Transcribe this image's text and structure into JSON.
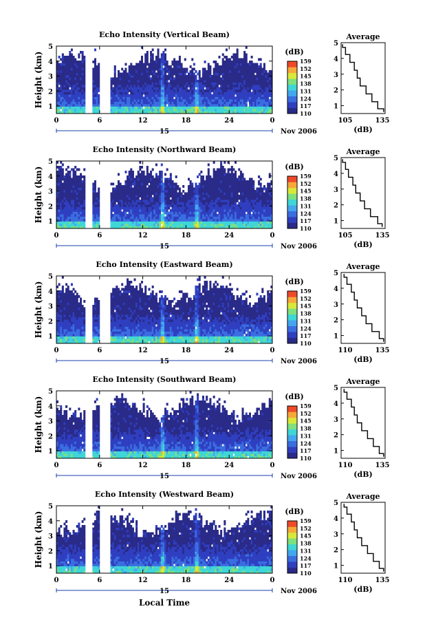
{
  "chart_data": [
    {
      "type": "heatmap",
      "title": "Echo Intensity (Vertical Beam)",
      "ylabel": "Height (km)",
      "ylim": [
        0.5,
        5.0
      ],
      "yticks": [
        "1",
        "2",
        "3",
        "4",
        "5"
      ],
      "xticks": [
        "0",
        "6",
        "12",
        "18",
        "24",
        "0"
      ],
      "xlim": [
        0,
        24
      ],
      "date_label": "15",
      "month_label": "Nov 2006",
      "colorbar": {
        "unit": "(dB)",
        "ticks": [
          "159",
          "152",
          "145",
          "138",
          "131",
          "124",
          "117",
          "110"
        ],
        "range": [
          110,
          159
        ]
      },
      "data_gaps_hours": [
        [
          3.3,
          4.0
        ],
        [
          4.9,
          5.9
        ]
      ],
      "bright_columns_hours": [
        11.8,
        15.6
      ],
      "profile": {
        "title": "Average",
        "xlabel": "(dB)",
        "xticks": [
          "105",
          "135"
        ],
        "xlim": [
          105,
          135
        ],
        "yticks": [
          "1",
          "2",
          "3",
          "4",
          "5"
        ],
        "height": [
          0.6,
          1.0,
          1.5,
          2.0,
          2.5,
          3.0,
          3.5,
          4.0,
          4.5,
          4.9
        ],
        "value": [
          134,
          130,
          126,
          122,
          118,
          116,
          114,
          111,
          108,
          106
        ]
      }
    },
    {
      "type": "heatmap",
      "title": "Echo Intensity (Northward Beam)",
      "ylabel": "Height (km)",
      "ylim": [
        0.5,
        5.0
      ],
      "yticks": [
        "1",
        "2",
        "3",
        "4",
        "5"
      ],
      "xticks": [
        "0",
        "6",
        "12",
        "18",
        "24",
        "0"
      ],
      "xlim": [
        0,
        24
      ],
      "date_label": "15",
      "month_label": "Nov 2006",
      "colorbar": {
        "unit": "(dB)",
        "ticks": [
          "159",
          "152",
          "145",
          "138",
          "131",
          "124",
          "117",
          "110"
        ],
        "range": [
          110,
          159
        ]
      },
      "data_gaps_hours": [
        [
          3.3,
          4.0
        ],
        [
          4.9,
          5.9
        ]
      ],
      "bright_columns_hours": [
        11.8,
        15.6
      ],
      "profile": {
        "title": "Average",
        "xlabel": "(dB)",
        "xticks": [
          "105",
          "135"
        ],
        "xlim": [
          105,
          135
        ],
        "yticks": [
          "1",
          "2",
          "3",
          "4",
          "5"
        ],
        "height": [
          0.6,
          1.0,
          1.5,
          2.0,
          2.5,
          3.0,
          3.5,
          4.0,
          4.5,
          4.9
        ],
        "value": [
          133,
          130,
          125,
          121,
          118,
          115,
          113,
          110,
          108,
          106
        ]
      }
    },
    {
      "type": "heatmap",
      "title": "Echo Intensity (Eastward Beam)",
      "ylabel": "Height (km)",
      "ylim": [
        0.5,
        5.0
      ],
      "yticks": [
        "1",
        "2",
        "3",
        "4",
        "5"
      ],
      "xticks": [
        "0",
        "6",
        "12",
        "18",
        "24",
        "0"
      ],
      "xlim": [
        0,
        24
      ],
      "date_label": "15",
      "month_label": "Nov 2006",
      "colorbar": {
        "unit": "(dB)",
        "ticks": [
          "159",
          "152",
          "145",
          "138",
          "131",
          "124",
          "117",
          "110"
        ],
        "range": [
          110,
          159
        ]
      },
      "data_gaps_hours": [
        [
          3.3,
          4.0
        ],
        [
          4.9,
          5.9
        ]
      ],
      "bright_columns_hours": [
        11.8,
        15.6
      ],
      "profile": {
        "title": "Average",
        "xlabel": "(dB)",
        "xticks": [
          "110",
          "135"
        ],
        "xlim": [
          105,
          135
        ],
        "yticks": [
          "1",
          "2",
          "3",
          "4",
          "5"
        ],
        "height": [
          0.6,
          1.0,
          1.5,
          2.0,
          2.5,
          3.0,
          3.5,
          4.0,
          4.5,
          4.9
        ],
        "value": [
          134,
          131,
          126,
          122,
          119,
          116,
          114,
          112,
          109,
          107
        ]
      }
    },
    {
      "type": "heatmap",
      "title": "Echo Intensity (Southward Beam)",
      "ylabel": "Height (km)",
      "ylim": [
        0.5,
        5.0
      ],
      "yticks": [
        "1",
        "2",
        "3",
        "4",
        "5"
      ],
      "xticks": [
        "0",
        "6",
        "12",
        "18",
        "24",
        "0"
      ],
      "xlim": [
        0,
        24
      ],
      "date_label": "15",
      "month_label": "Nov 2006",
      "colorbar": {
        "unit": "(dB)",
        "ticks": [
          "159",
          "152",
          "145",
          "138",
          "131",
          "124",
          "117",
          "110"
        ],
        "range": [
          110,
          159
        ]
      },
      "data_gaps_hours": [
        [
          3.3,
          4.0
        ],
        [
          4.9,
          5.9
        ]
      ],
      "bright_columns_hours": [
        11.8,
        15.6
      ],
      "profile": {
        "title": "Average",
        "xlabel": "(dB)",
        "xticks": [
          "110",
          "135"
        ],
        "xlim": [
          105,
          135
        ],
        "yticks": [
          "1",
          "2",
          "3",
          "4",
          "5"
        ],
        "height": [
          0.6,
          1.0,
          1.5,
          2.0,
          2.5,
          3.0,
          3.5,
          4.0,
          4.5,
          4.9
        ],
        "value": [
          134,
          131,
          127,
          123,
          119,
          116,
          114,
          112,
          109,
          107
        ]
      }
    },
    {
      "type": "heatmap",
      "title": "Echo Intensity (Westward Beam)",
      "ylabel": "Height (km)",
      "ylim": [
        0.5,
        5.0
      ],
      "yticks": [
        "1",
        "2",
        "3",
        "4",
        "5"
      ],
      "xticks": [
        "0",
        "6",
        "12",
        "18",
        "24",
        "0"
      ],
      "xlim": [
        0,
        24
      ],
      "date_label": "15",
      "month_label": "Nov 2006",
      "xlabel": "Local Time",
      "colorbar": {
        "unit": "(dB)",
        "ticks": [
          "159",
          "152",
          "145",
          "138",
          "131",
          "124",
          "117",
          "110"
        ],
        "range": [
          110,
          159
        ]
      },
      "data_gaps_hours": [
        [
          3.3,
          4.0
        ],
        [
          4.9,
          5.9
        ]
      ],
      "bright_columns_hours": [
        11.8,
        15.6
      ],
      "profile": {
        "title": "Average",
        "xlabel": "(dB)",
        "xticks": [
          "110",
          "135"
        ],
        "xlim": [
          105,
          135
        ],
        "yticks": [
          "1",
          "2",
          "3",
          "4",
          "5"
        ],
        "height": [
          0.6,
          1.0,
          1.5,
          2.0,
          2.5,
          3.0,
          3.5,
          4.0,
          4.5,
          4.9
        ],
        "value": [
          134,
          131,
          127,
          123,
          119,
          116,
          114,
          112,
          109,
          107
        ]
      }
    }
  ],
  "colors": {
    "scale": [
      "#2a2a88",
      "#2f3fc0",
      "#3a6ee0",
      "#44a6ee",
      "#3fd6d6",
      "#7ee07e",
      "#d8e83a",
      "#f6a83a",
      "#ee4a2a"
    ],
    "missing": "#ffffff",
    "axis": "#000000"
  }
}
